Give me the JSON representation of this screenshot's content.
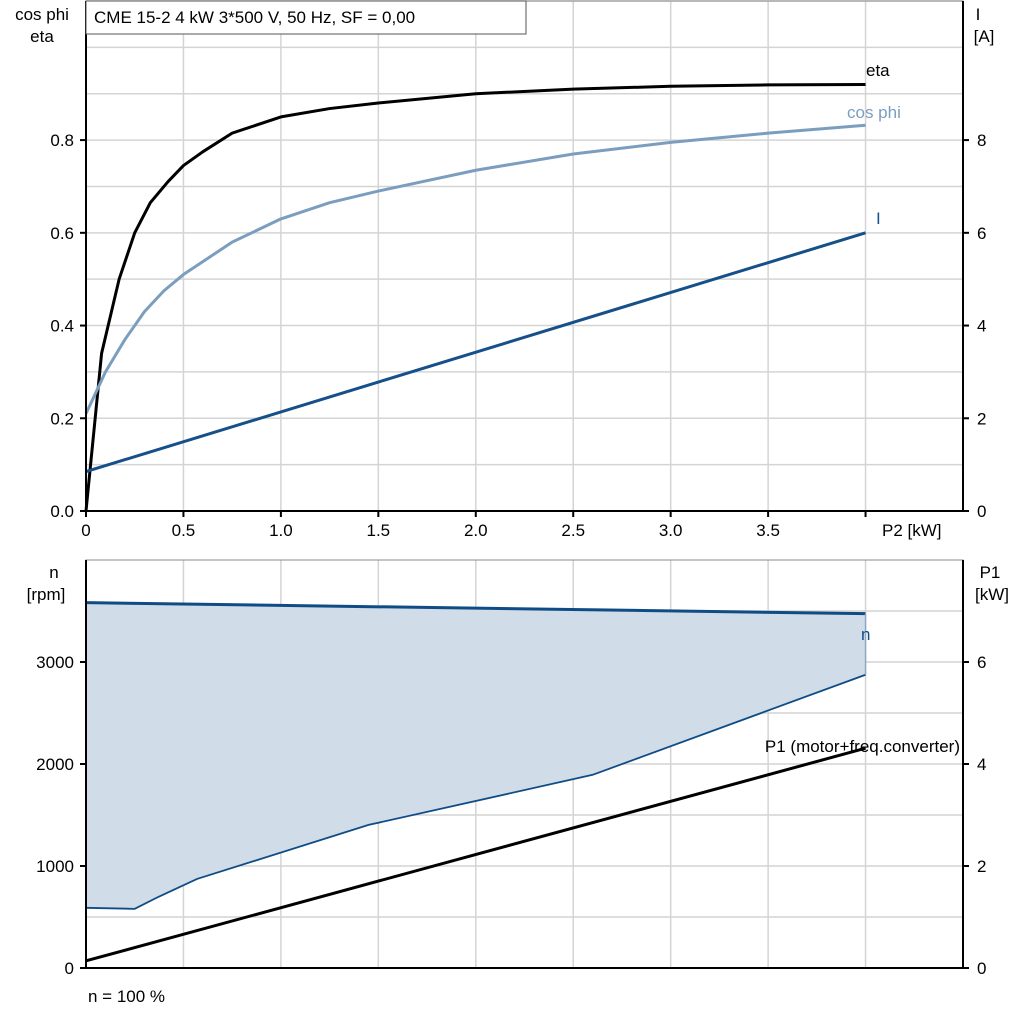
{
  "chart_data": [
    {
      "type": "line",
      "title": "CME 15-2   4 kW   3*500 V, 50 Hz, SF = 0,00",
      "xlabel": "P2 [kW]",
      "ylabel_left": [
        "cos phi",
        "eta"
      ],
      "ylabel_right": [
        "I",
        "[A]"
      ],
      "xlim": [
        0,
        4.5
      ],
      "ylim_left": [
        0,
        1.1
      ],
      "ylim_right": [
        0,
        11
      ],
      "x_ticks": [
        "0",
        "0.5",
        "1.0",
        "1.5",
        "2.0",
        "2.5",
        "3.0",
        "3.5"
      ],
      "x_tick_values": [
        0,
        0.5,
        1.0,
        1.5,
        2.0,
        2.5,
        3.0,
        3.5
      ],
      "y_left_ticks": [
        "0.0",
        "0.2",
        "0.4",
        "0.6",
        "0.8"
      ],
      "y_left_tick_values": [
        0,
        0.2,
        0.4,
        0.6,
        0.8
      ],
      "y_right_ticks": [
        "0",
        "2",
        "4",
        "6",
        "8"
      ],
      "y_right_tick_values": [
        0,
        2,
        4,
        6,
        8
      ],
      "grid": true,
      "series": [
        {
          "name": "eta",
          "axis": "left",
          "color": "#000000",
          "x": [
            0,
            0.08,
            0.17,
            0.25,
            0.33,
            0.42,
            0.5,
            0.6,
            0.75,
            1.0,
            1.25,
            1.5,
            2.0,
            2.5,
            3.0,
            3.5,
            4.0
          ],
          "y": [
            0,
            0.34,
            0.5,
            0.6,
            0.665,
            0.71,
            0.745,
            0.775,
            0.815,
            0.85,
            0.868,
            0.88,
            0.9,
            0.91,
            0.916,
            0.919,
            0.92
          ]
        },
        {
          "name": "cos phi",
          "axis": "left",
          "color": "#7b9ebf",
          "x": [
            0,
            0.1,
            0.2,
            0.3,
            0.4,
            0.5,
            0.75,
            1.0,
            1.25,
            1.5,
            2.0,
            2.5,
            3.0,
            3.5,
            4.0
          ],
          "y": [
            0.21,
            0.3,
            0.37,
            0.43,
            0.475,
            0.51,
            0.58,
            0.63,
            0.665,
            0.69,
            0.735,
            0.77,
            0.795,
            0.815,
            0.832
          ]
        },
        {
          "name": "I",
          "axis": "right",
          "color": "#15508a",
          "x": [
            0,
            4.0
          ],
          "y": [
            0.85,
            6.0
          ]
        }
      ]
    },
    {
      "type": "area",
      "xlim": [
        0,
        4.5
      ],
      "ylabel_left": [
        "n",
        "[rpm]"
      ],
      "ylabel_right": [
        "P1",
        "[kW]"
      ],
      "ylim_left": [
        0,
        4000
      ],
      "ylim_right": [
        0,
        8
      ],
      "y_left_ticks": [
        "0",
        "1000",
        "2000",
        "3000"
      ],
      "y_left_tick_values": [
        0,
        1000,
        2000,
        3000
      ],
      "y_right_ticks": [
        "0",
        "2",
        "4",
        "6"
      ],
      "y_right_tick_values": [
        0,
        2,
        4,
        6
      ],
      "grid": true,
      "annotation": "n = 100 %",
      "series": [
        {
          "name": "n",
          "axis": "left",
          "color": "#0f4c86",
          "fill": "#d0dce8",
          "upper_x": [
            0,
            4.0
          ],
          "upper_y": [
            3582,
            3474
          ],
          "lower_x": [
            0,
            0.25,
            0.37,
            0.57,
            1.45,
            2.6,
            4.0
          ],
          "lower_y": [
            590,
            580,
            696,
            873,
            1403,
            1894,
            2875
          ]
        },
        {
          "name": "P1 (motor+freq.converter)",
          "axis": "right",
          "color": "#000000",
          "x": [
            0,
            4.0
          ],
          "y": [
            0.14,
            4.31
          ]
        }
      ]
    }
  ]
}
